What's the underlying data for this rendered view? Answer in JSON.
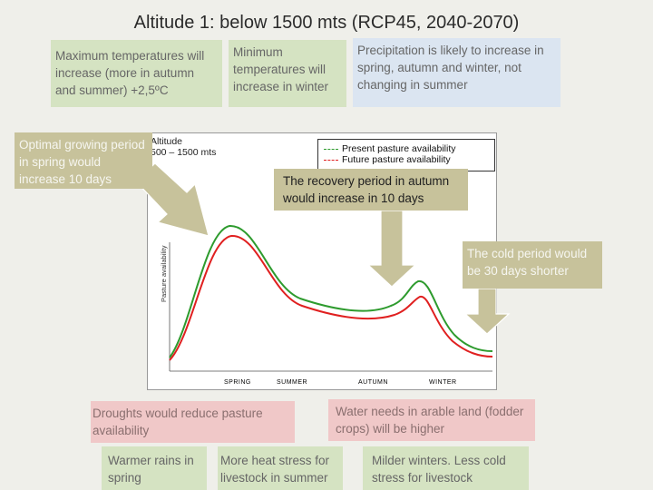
{
  "title": "Altitude 1: below 1500 mts (RCP45, 2040-2070)",
  "top_boxes": {
    "max_temp": "Maximum temperatures will increase (more in autumn and summer) +2,5ºC",
    "min_temp": "Minimum temperatures will increase in winter",
    "precip": "Precipitation is likely to increase in spring, autumn and winter, not changing in summer"
  },
  "callouts": {
    "growing": "Optimal growing period in spring would increase 10 days",
    "recovery": "The recovery period in autumn would increase in 10 days",
    "cold": "The cold period would be 30 days shorter"
  },
  "chart": {
    "altitude_label_1": "Altitude",
    "altitude_label_2": "500 – 1500 mts",
    "ylabel": "Pasture availability",
    "legend": [
      {
        "label": "Present pasture availability",
        "color": "#2e9b2e"
      },
      {
        "label": "Future pasture availability",
        "color": "#e02020"
      }
    ],
    "seasons": [
      "SPRING",
      "SUMMER",
      "AUTUMN",
      "WINTER"
    ]
  },
  "bottom_boxes": {
    "droughts": "Droughts would reduce pasture availability",
    "water": "Water needs in arable land (fodder crops) will be higher",
    "warm_rains": "Warmer rains in spring",
    "heat_stress": "More heat stress for livestock in summer",
    "milder": "Milder winters. Less cold stress for livestock"
  },
  "colors": {
    "green_box": "#d5e3c2",
    "blue_box": "#dbe5f1",
    "tan_box": "#c7c29b",
    "pink_box": "#f0c8c8"
  }
}
